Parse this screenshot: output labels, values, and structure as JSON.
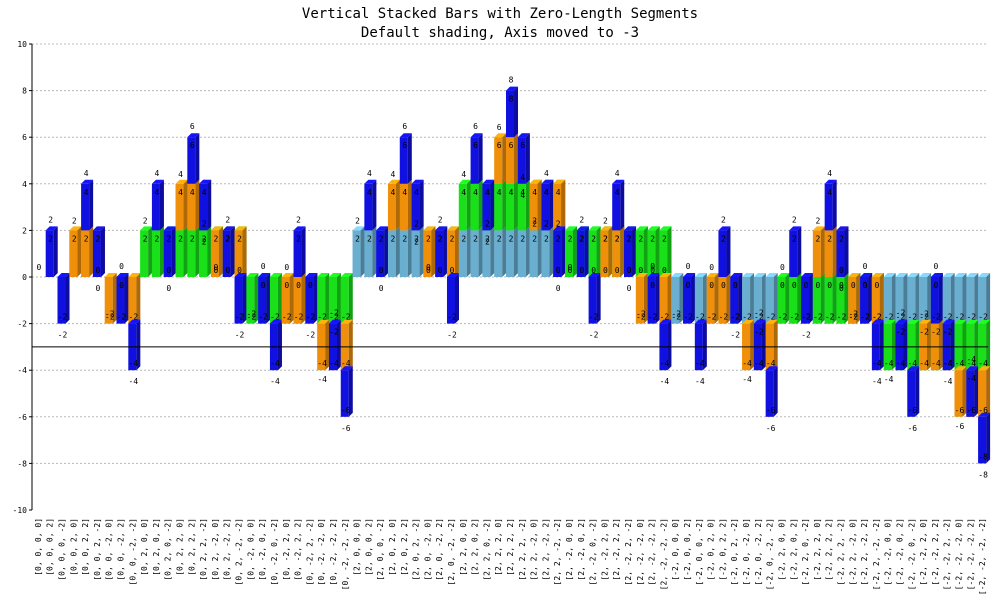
{
  "chart_data": {
    "type": "bar",
    "stacked": true,
    "title": "Vertical Stacked Bars with Zero-Length Segments",
    "subtitle": "Default shading, Axis moved to -3",
    "ylim": [
      -10,
      10
    ],
    "yticks": [
      10,
      8,
      6,
      4,
      2,
      0,
      -2,
      -4,
      -6,
      -8,
      -10
    ],
    "axis_position": -3,
    "grid": true,
    "categories": [
      "[0, 0, 0, 0]",
      "[0, 0, 0, 2]",
      "[0, 0, 0, -2]",
      "[0, 0, 2, 0]",
      "[0, 0, 2, 2]",
      "[0, 0, 2, -2]",
      "[0, 0, -2, 0]",
      "[0, 0, -2, 2]",
      "[0, 0, -2, -2]",
      "[0, 2, 0, 0]",
      "[0, 2, 0, 2]",
      "[0, 2, 0, -2]",
      "[0, 2, 2, 0]",
      "[0, 2, 2, 2]",
      "[0, 2, 2, -2]",
      "[0, 2, -2, 0]",
      "[0, 2, -2, 2]",
      "[0, 2, -2, -2]",
      "[0, -2, 0, 0]",
      "[0, -2, 0, 2]",
      "[0, -2, 0, -2]",
      "[0, -2, 2, 0]",
      "[0, -2, 2, 2]",
      "[0, -2, 2, -2]",
      "[0, -2, -2, 0]",
      "[0, -2, -2, 2]",
      "[0, -2, -2, -2]",
      "[2, 0, 0, 0]",
      "[2, 0, 0, 2]",
      "[2, 0, 0, -2]",
      "[2, 0, 2, 0]",
      "[2, 0, 2, 2]",
      "[2, 0, 2, -2]",
      "[2, 0, -2, 0]",
      "[2, 0, -2, 2]",
      "[2, 0, -2, -2]",
      "[2, 2, 0, 0]",
      "[2, 2, 0, 2]",
      "[2, 2, 0, -2]",
      "[2, 2, 2, 0]",
      "[2, 2, 2, 2]",
      "[2, 2, 2, -2]",
      "[2, 2, -2, 0]",
      "[2, 2, -2, 2]",
      "[2, 2, -2, -2]",
      "[2, -2, 0, 0]",
      "[2, -2, 0, 2]",
      "[2, -2, 0, -2]",
      "[2, -2, 2, 0]",
      "[2, -2, 2, 2]",
      "[2, -2, 2, -2]",
      "[2, -2, -2, 0]",
      "[2, -2, -2, 2]",
      "[2, -2, -2, -2]",
      "[-2, 0, 0, 0]",
      "[-2, 0, 0, 2]",
      "[-2, 0, 0, -2]",
      "[-2, 0, 2, 0]",
      "[-2, 0, 2, 2]",
      "[-2, 0, 2, -2]",
      "[-2, 0, -2, 0]",
      "[-2, 0, -2, 2]",
      "[-2, 0, -2, -2]",
      "[-2, 2, 0, 0]",
      "[-2, 2, 0, 2]",
      "[-2, 2, 0, -2]",
      "[-2, 2, 2, 0]",
      "[-2, 2, 2, 2]",
      "[-2, 2, 2, -2]",
      "[-2, 2, -2, 0]",
      "[-2, 2, -2, 2]",
      "[-2, 2, -2, -2]",
      "[-2, -2, 0, 0]",
      "[-2, -2, 0, 2]",
      "[-2, -2, 0, -2]",
      "[-2, -2, 2, 0]",
      "[-2, -2, 2, 2]",
      "[-2, -2, 2, -2]",
      "[-2, -2, -2, 0]",
      "[-2, -2, -2, 2]",
      "[-2, -2, -2, -2]"
    ],
    "series_colors": [
      "#6aaed0",
      "#19e019",
      "#f0900a",
      "#1010e0"
    ],
    "value_label_rule": "cumulative stack total printed at the end of each segment",
    "series": [
      {
        "values": [
          0,
          0,
          0,
          0,
          0,
          0,
          0,
          0,
          0,
          0,
          0,
          0,
          0,
          0,
          0,
          0,
          0,
          0,
          0,
          0,
          0,
          0,
          0,
          0,
          0,
          0,
          0,
          2,
          2,
          2,
          2,
          2,
          2,
          2,
          2,
          2,
          2,
          2,
          2,
          2,
          2,
          2,
          2,
          2,
          2,
          2,
          2,
          2,
          2,
          2,
          2,
          2,
          2,
          2,
          -2,
          -2,
          -2,
          -2,
          -2,
          -2,
          -2,
          -2,
          -2,
          -2,
          -2,
          -2,
          -2,
          -2,
          -2,
          -2,
          -2,
          -2,
          -2,
          -2,
          -2,
          -2,
          -2,
          -2,
          -2,
          -2,
          -2
        ]
      },
      {
        "values": [
          0,
          0,
          0,
          0,
          0,
          0,
          0,
          0,
          0,
          2,
          2,
          2,
          2,
          2,
          2,
          2,
          2,
          2,
          -2,
          -2,
          -2,
          -2,
          -2,
          -2,
          -2,
          -2,
          -2,
          0,
          0,
          0,
          0,
          0,
          0,
          0,
          0,
          0,
          2,
          2,
          2,
          2,
          2,
          2,
          2,
          2,
          2,
          -2,
          -2,
          -2,
          -2,
          -2,
          -2,
          -2,
          -2,
          -2,
          0,
          0,
          0,
          0,
          0,
          0,
          0,
          0,
          0,
          2,
          2,
          2,
          2,
          2,
          2,
          2,
          2,
          2,
          -2,
          -2,
          -2,
          -2,
          -2,
          -2,
          -2,
          -2,
          -2
        ]
      },
      {
        "values": [
          0,
          0,
          0,
          2,
          2,
          2,
          -2,
          -2,
          -2,
          0,
          0,
          0,
          2,
          2,
          2,
          -2,
          -2,
          -2,
          0,
          0,
          0,
          2,
          2,
          2,
          -2,
          -2,
          -2,
          0,
          0,
          0,
          2,
          2,
          2,
          -2,
          -2,
          -2,
          0,
          0,
          0,
          2,
          2,
          2,
          -2,
          -2,
          -2,
          0,
          0,
          0,
          2,
          2,
          2,
          -2,
          -2,
          -2,
          0,
          0,
          0,
          2,
          2,
          2,
          -2,
          -2,
          -2,
          0,
          0,
          0,
          2,
          2,
          2,
          -2,
          -2,
          -2,
          0,
          0,
          0,
          2,
          2,
          2,
          -2,
          -2,
          -2
        ]
      },
      {
        "values": [
          0,
          2,
          -2,
          0,
          2,
          -2,
          0,
          2,
          -2,
          0,
          2,
          -2,
          0,
          2,
          -2,
          0,
          2,
          -2,
          0,
          2,
          -2,
          0,
          2,
          -2,
          0,
          2,
          -2,
          0,
          2,
          -2,
          0,
          2,
          -2,
          0,
          2,
          -2,
          0,
          2,
          -2,
          0,
          2,
          -2,
          0,
          2,
          -2,
          0,
          2,
          -2,
          0,
          2,
          -2,
          0,
          2,
          -2,
          0,
          2,
          -2,
          0,
          2,
          -2,
          0,
          2,
          -2,
          0,
          2,
          -2,
          0,
          2,
          -2,
          0,
          2,
          -2,
          0,
          2,
          -2,
          0,
          2,
          -2,
          0,
          2,
          -2
        ]
      }
    ]
  }
}
